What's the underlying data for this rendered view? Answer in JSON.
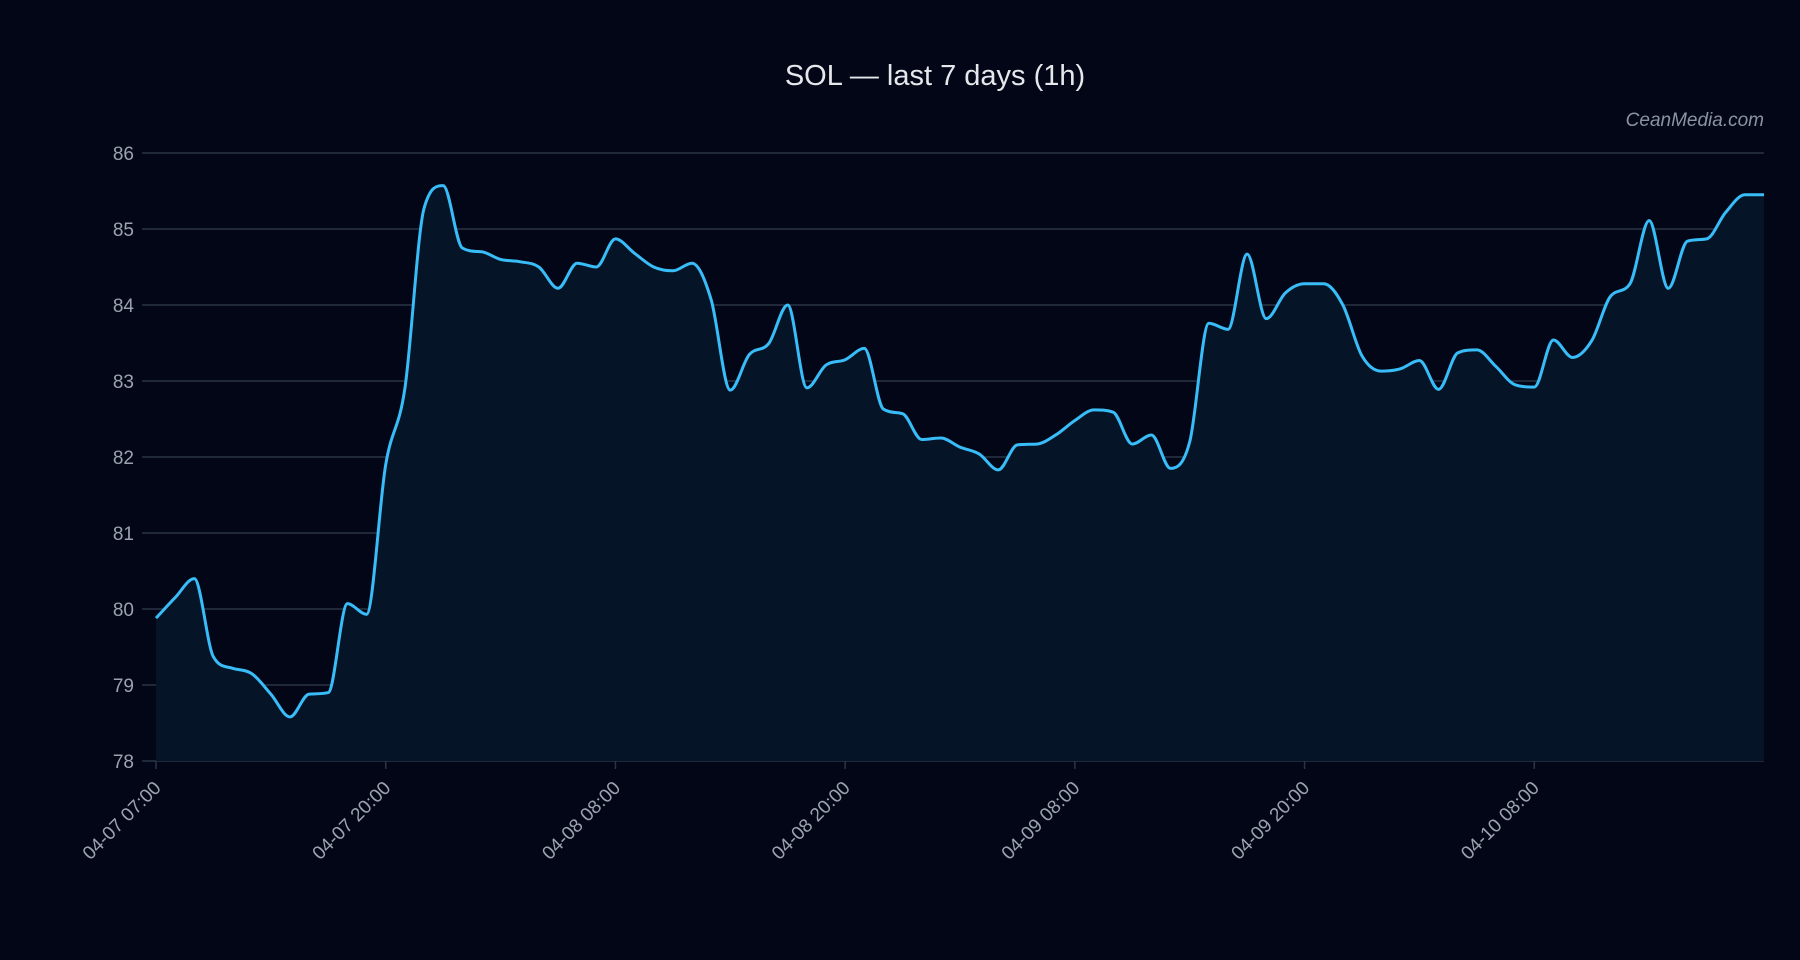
{
  "chart_data": {
    "type": "area",
    "title": "SOL — last 7 days (1h)",
    "watermark": "CeanMedia.com",
    "xlabel": "",
    "ylabel": "",
    "ylim": [
      78,
      86
    ],
    "yticks": [
      78,
      79,
      80,
      81,
      82,
      83,
      84,
      85,
      86
    ],
    "grid": true,
    "xtick_labels": [
      {
        "index": 0,
        "label": "04-07 07:00"
      },
      {
        "index": 12,
        "label": "04-07 20:00"
      },
      {
        "index": 24,
        "label": "04-08 08:00"
      },
      {
        "index": 36,
        "label": "04-08 20:00"
      },
      {
        "index": 48,
        "label": "04-09 08:00"
      },
      {
        "index": 60,
        "label": "04-09 20:00"
      },
      {
        "index": 72,
        "label": "04-10 08:00"
      }
    ],
    "values": [
      79.88,
      80.15,
      80.4,
      79.37,
      79.22,
      79.15,
      78.88,
      78.58,
      78.88,
      78.9,
      80.07,
      79.93,
      81.9,
      82.9,
      85.27,
      85.57,
      84.75,
      84.7,
      84.6,
      84.57,
      84.5,
      84.22,
      84.55,
      84.5,
      84.87,
      84.68,
      84.5,
      84.45,
      84.55,
      84.07,
      82.88,
      83.35,
      83.49,
      84.0,
      82.91,
      83.21,
      83.28,
      83.43,
      82.63,
      82.57,
      82.23,
      82.25,
      82.13,
      82.04,
      81.83,
      82.16,
      82.17,
      82.29,
      82.48,
      82.62,
      82.59,
      82.17,
      82.29,
      81.85,
      82.2,
      83.76,
      83.68,
      84.67,
      83.82,
      84.16,
      84.28,
      84.28,
      84.0,
      83.33,
      83.13,
      83.16,
      83.27,
      82.89,
      83.37,
      83.41,
      83.19,
      82.95,
      82.92,
      83.54,
      83.31,
      83.53,
      84.12,
      84.28,
      85.11,
      84.22,
      84.84,
      84.87,
      85.22,
      85.45,
      85.45
    ],
    "colors": {
      "background": "#020617",
      "line": "#38bdf8",
      "fill": "#061428",
      "grid": "#2b3545",
      "text": "#9ca3af"
    }
  }
}
